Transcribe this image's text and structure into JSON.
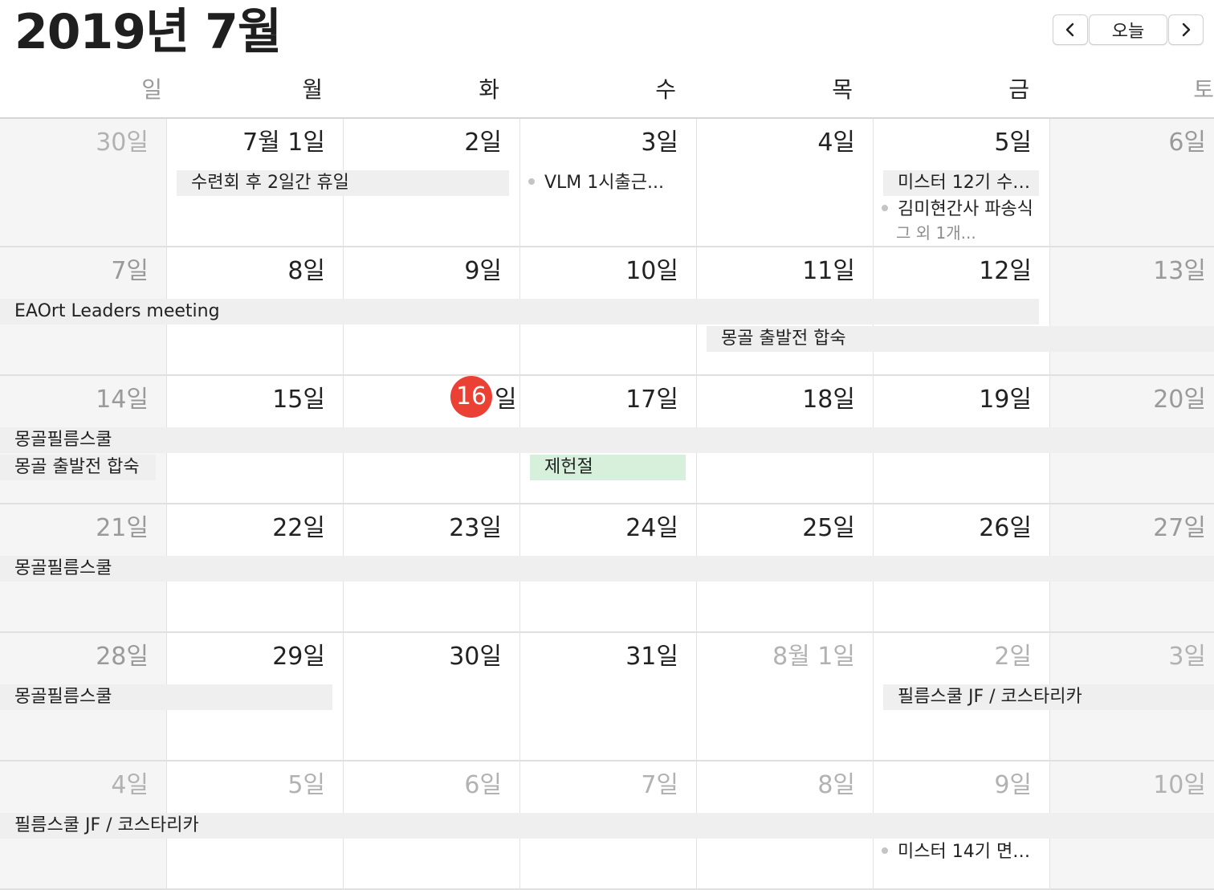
{
  "header": {
    "title": "2019년 7월",
    "today_label": "오늘",
    "prev_icon": "chevron-left-icon",
    "next_icon": "chevron-right-icon"
  },
  "weekdays": [
    "일",
    "월",
    "화",
    "수",
    "목",
    "금",
    "토"
  ],
  "accent": {
    "today": "#eb4135",
    "holiday_event": "#d7f0dc",
    "event_bar": "#efefef"
  },
  "weeks": [
    [
      "30일",
      "7월 1일",
      "2일",
      "3일",
      "4일",
      "5일",
      "6일"
    ],
    [
      "7일",
      "8일",
      "9일",
      "10일",
      "11일",
      "12일",
      "13일"
    ],
    [
      "14일",
      "15일",
      "16",
      "17일",
      "18일",
      "19일",
      "20일"
    ],
    [
      "21일",
      "22일",
      "23일",
      "24일",
      "25일",
      "26일",
      "27일"
    ],
    [
      "28일",
      "29일",
      "30일",
      "31일",
      "8월 1일",
      "2일",
      "3일"
    ],
    [
      "4일",
      "5일",
      "6일",
      "7일",
      "8일",
      "9일",
      "10일"
    ]
  ],
  "today": {
    "number": "16",
    "suffix": "일"
  },
  "events": {
    "retreat": "수련회 후 2일간 휴일",
    "vlm": "VLM 1시출근...",
    "mister12": "미스터 12기 수…",
    "kim": "김미현간사 파송식",
    "more_fri": "그 외 1개...",
    "eaort": "EAOrt Leaders meeting",
    "mongol_camp_w2": "몽골 출발전 합숙",
    "mongol_film_w3": "몽골필름스쿨",
    "mongol_camp_w3": "몽골 출발전 합숙",
    "constitution_day": "제헌절",
    "mongol_film_w4": "몽골필름스쿨",
    "mongol_film_w5": "몽골필름스쿨",
    "film_jf_w5": "필름스쿨 JF / 코스타리카",
    "film_jf_w6": "필름스쿨 JF / 코스타리카",
    "mister14": "미스터 14기 면…"
  }
}
